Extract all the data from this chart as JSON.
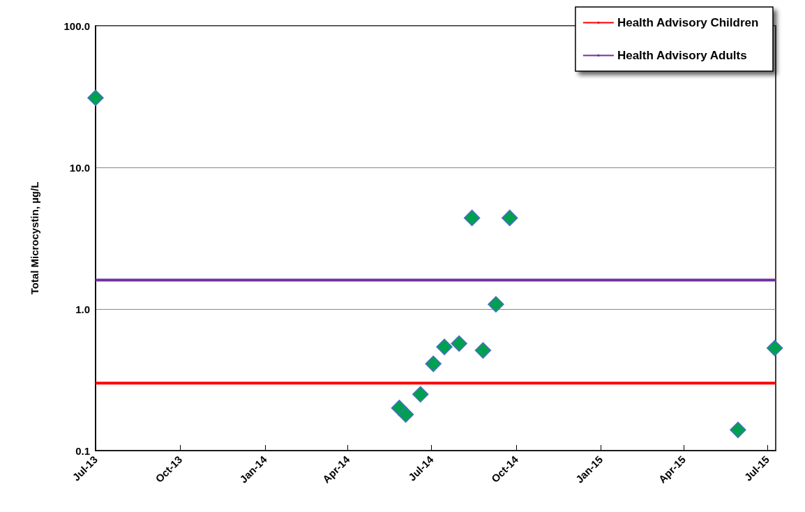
{
  "chart_data": {
    "type": "scatter",
    "ylabel": "Total Microcystin, µg/L",
    "x": [
      "2013-07-01",
      "2014-05-27",
      "2014-06-03",
      "2014-06-19",
      "2014-07-03",
      "2014-07-15",
      "2014-07-31",
      "2014-08-14",
      "2014-08-26",
      "2014-09-09",
      "2014-09-24",
      "2015-05-30",
      "2015-07-09"
    ],
    "series": [
      {
        "color": "#00a050",
        "values": [
          31,
          0.2,
          0.18,
          0.25,
          0.41,
          0.54,
          0.57,
          4.4,
          0.51,
          1.08,
          4.4,
          0.14,
          0.53
        ]
      }
    ],
    "marker": "diamond",
    "log": "y",
    "xlim": [
      "2013-07-01",
      "2015-07-10"
    ],
    "xticks": [
      {
        "value": "2013-07-01",
        "label": "Jul-13"
      },
      {
        "value": "2013-10-01",
        "label": "Oct-13"
      },
      {
        "value": "2014-01-01",
        "label": "Jan-14"
      },
      {
        "value": "2014-04-01",
        "label": "Apr-14"
      },
      {
        "value": "2014-07-01",
        "label": "Jul-14"
      },
      {
        "value": "2014-10-01",
        "label": "Oct-14"
      },
      {
        "value": "2015-01-01",
        "label": "Jan-15"
      },
      {
        "value": "2015-04-01",
        "label": "Apr-15"
      },
      {
        "value": "2015-07-01",
        "label": "Jul-15"
      }
    ],
    "ylim": [
      0.1,
      100
    ],
    "yticks": [
      {
        "value": 0.1,
        "label": "0.1"
      },
      {
        "value": 1,
        "label": "1.0"
      },
      {
        "value": 10,
        "label": "10.0"
      },
      {
        "value": 100,
        "label": "100.0"
      }
    ],
    "ref_lines": [
      {
        "axis": "y",
        "value": 0.3,
        "label": "Health Advisory Children",
        "color": "#ff0000"
      },
      {
        "axis": "y",
        "value": 1.6,
        "label": "Health Advisory Adults",
        "color": "#7030a0"
      }
    ],
    "grid": "y",
    "legend": "top right"
  }
}
